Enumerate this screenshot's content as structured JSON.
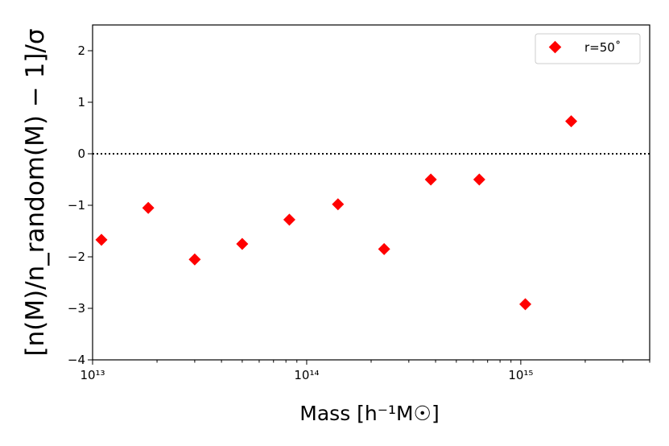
{
  "chart_data": {
    "type": "scatter",
    "xlabel": "Mass [h⁻¹M☉]",
    "ylabel": "[n(M)/n_random(M) − 1]/σ",
    "xscale": "log",
    "xlim": [
      10000000000000.0,
      4000000000000000.0
    ],
    "ylim": [
      -4,
      2.5
    ],
    "xticks": [
      10000000000000.0,
      100000000000000.0,
      1000000000000000.0
    ],
    "xtick_labels": [
      "10¹³",
      "10¹⁴",
      "10¹⁵"
    ],
    "yticks": [
      -4,
      -3,
      -2,
      -1,
      0,
      1,
      2
    ],
    "ytick_labels": [
      "−4",
      "−3",
      "−2",
      "−1",
      "0",
      "1",
      "2"
    ],
    "grid": false,
    "legend_position": "top-right",
    "reference_line": {
      "y": 0,
      "style": "dotted",
      "color": "#000000"
    },
    "series": [
      {
        "name": "r=50˚",
        "marker": "diamond",
        "color": "#ff0000",
        "x": [
          11000000000000.0,
          18200000000000.0,
          30000000000000.0,
          50000000000000.0,
          83000000000000.0,
          140000000000000.0,
          230000000000000.0,
          380000000000000.0,
          640000000000000.0,
          1050000000000000.0,
          1720000000000000.0
        ],
        "y": [
          -1.67,
          -1.05,
          -2.05,
          -1.75,
          -1.28,
          -0.98,
          -1.85,
          -0.5,
          -0.5,
          -2.92,
          0.63
        ]
      }
    ]
  }
}
